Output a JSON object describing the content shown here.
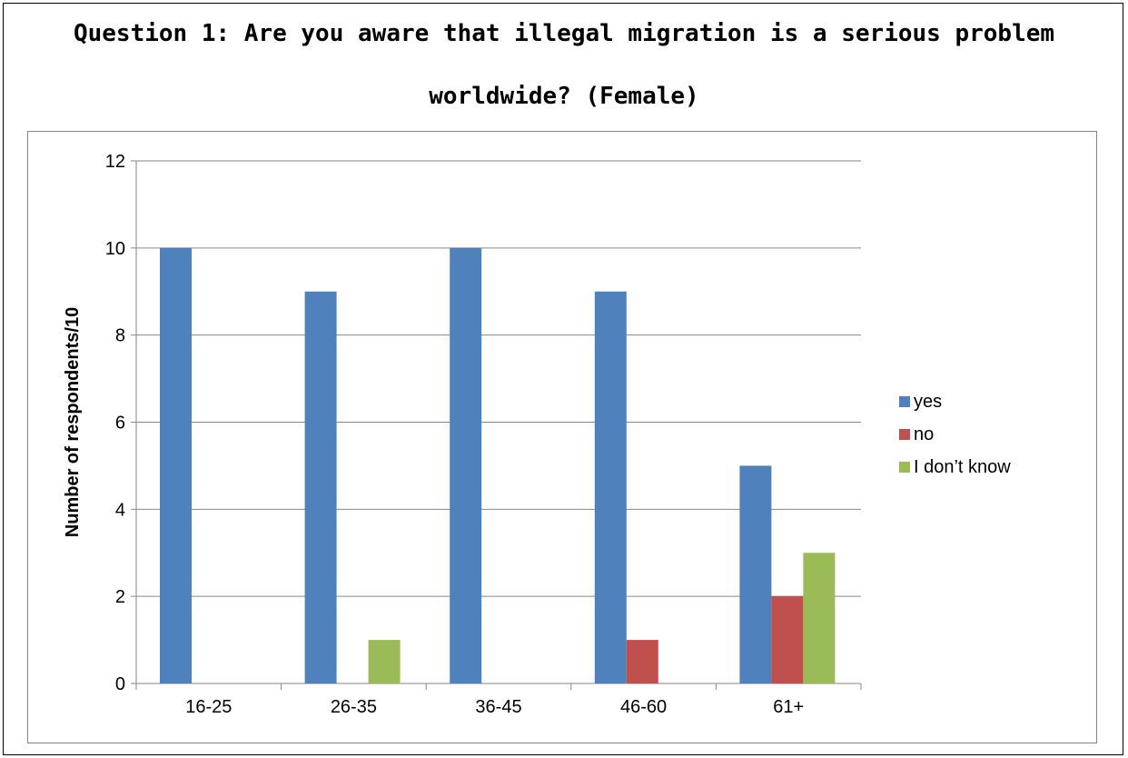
{
  "title": {
    "line1": "Question 1: Are you aware that illegal migration is a serious problem",
    "line2": "worldwide? (Female)"
  },
  "chart_data": {
    "type": "bar",
    "title": "Question 1: Are you aware that illegal migration is a serious problem worldwide? (Female)",
    "xlabel": "",
    "ylabel": "Number of respondents/10",
    "ylim": [
      0,
      12
    ],
    "yticks": [
      0,
      2,
      4,
      6,
      8,
      10,
      12
    ],
    "categories": [
      "16-25",
      "26-35",
      "36-45",
      "46-60",
      "61+"
    ],
    "series": [
      {
        "name": "yes",
        "color": "#4f81bd",
        "values": [
          10,
          9,
          10,
          9,
          5
        ]
      },
      {
        "name": "no",
        "color": "#c0504d",
        "values": [
          0,
          0,
          0,
          1,
          2
        ]
      },
      {
        "name": "I don’t know",
        "color": "#9bbb59",
        "values": [
          0,
          1,
          0,
          0,
          3
        ]
      }
    ],
    "grid": true,
    "legend": "right"
  }
}
